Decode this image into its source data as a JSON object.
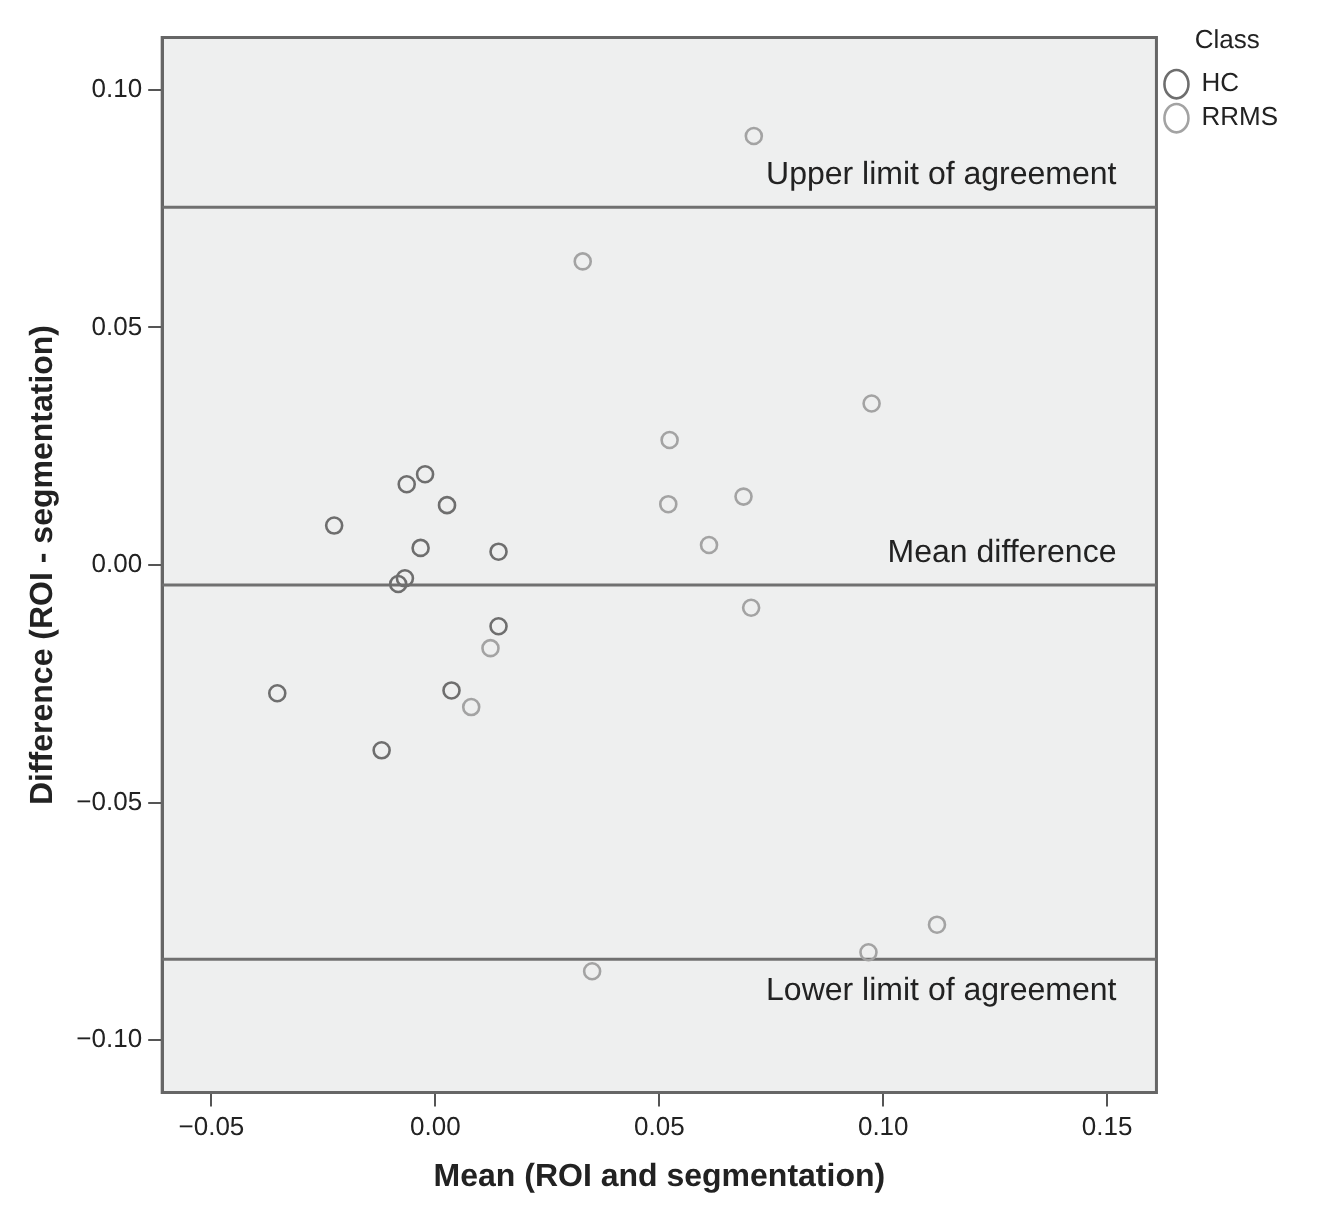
{
  "chart_data": {
    "type": "scatter",
    "xlabel": "Mean (ROI and segmentation)",
    "ylabel": "Difference (ROI - segmentation)",
    "legend_title": "Class",
    "legend": "top right",
    "grid": false,
    "marker": "circle",
    "xlim": [
      -0.061,
      0.161
    ],
    "ylim": [
      -0.111,
      0.111
    ],
    "xticks": [
      {
        "value": -0.05,
        "label": "−0.05"
      },
      "0.00",
      0.05,
      "0.10",
      0.15
    ],
    "yticks": [
      {
        "value": -0.1,
        "label": "−0.10"
      },
      {
        "value": -0.05,
        "label": "−0.05"
      },
      "0.00",
      0.05,
      "0.10"
    ],
    "series": [
      {
        "name": "HC",
        "color": "#6e6e6e",
        "x": [
          -0.0226,
          -0.0064,
          -0.0023,
          0.0026,
          -0.0033,
          0.0141,
          -0.0083,
          -0.0068,
          0.0141,
          -0.0353,
          0.0036,
          -0.012
        ],
        "values": [
          0.0083,
          0.017,
          0.0191,
          0.0126,
          0.0036,
          0.0028,
          -0.004,
          -0.0028,
          -0.0129,
          -0.027,
          -0.0264,
          -0.039
        ]
      },
      {
        "name": "RRMS",
        "color": "#a3a3a3",
        "x": [
          0.0711,
          0.0329,
          0.0523,
          0.052,
          0.0688,
          0.0611,
          0.0974,
          0.0705,
          0.0123,
          0.008,
          0.035,
          0.0967,
          0.112
        ],
        "values": [
          0.0903,
          0.0639,
          0.0263,
          0.0128,
          0.0144,
          0.0042,
          0.034,
          -0.009,
          -0.0175,
          -0.0299,
          -0.0855,
          -0.0815,
          -0.0757
        ]
      }
    ],
    "ref_lines": [
      {
        "axis": "y",
        "value": 0.0753,
        "label": "Upper limit of agreement",
        "color": "#707070"
      },
      {
        "axis": "y",
        "value": -0.0042,
        "label": "Mean difference",
        "color": "#707070"
      },
      {
        "axis": "y",
        "value": -0.083,
        "label": "Lower limit of agreement",
        "color": "#707070"
      }
    ]
  }
}
